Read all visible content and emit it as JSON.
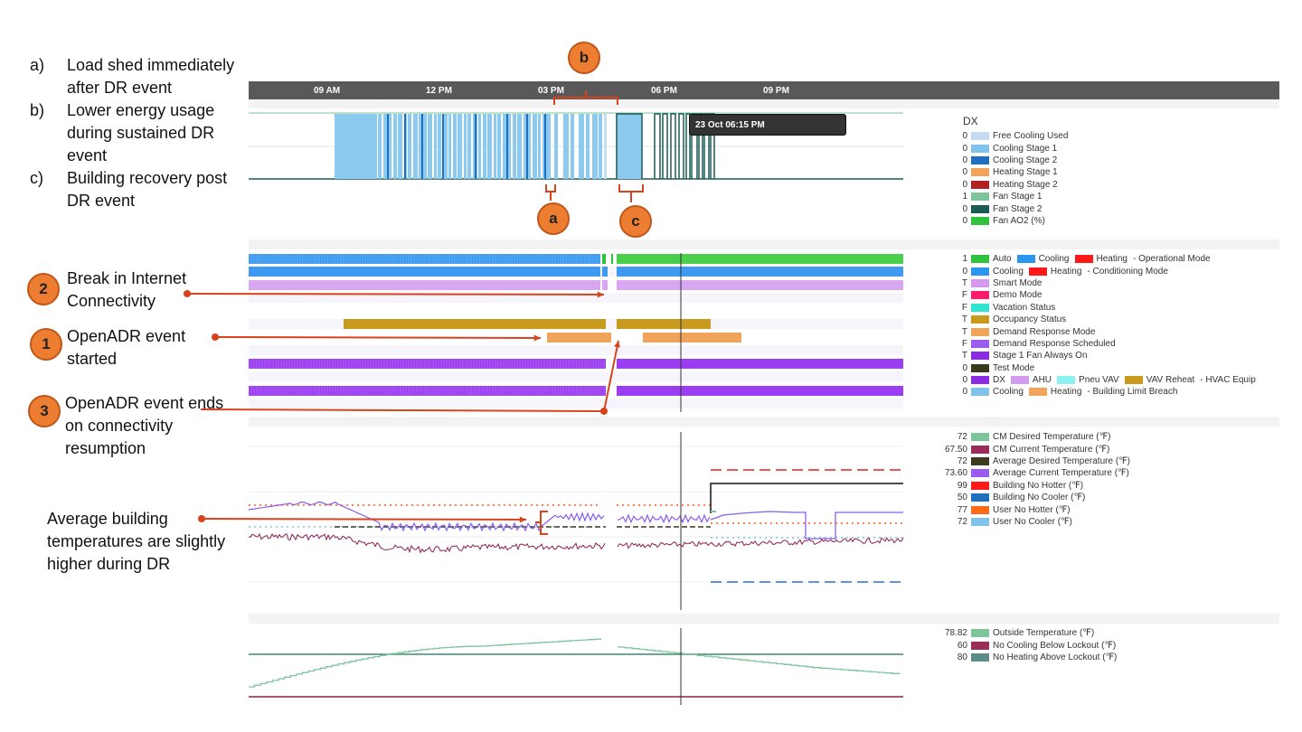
{
  "annotations": [
    {
      "key": "a)",
      "text": "Load shed immediately after DR event"
    },
    {
      "key": "b)",
      "text": "Lower energy usage during sustained DR event"
    },
    {
      "key": "c)",
      "text": "Building recovery post DR event"
    }
  ],
  "callouts": {
    "n2": {
      "num": "2",
      "text": "Break in Internet Connectivity"
    },
    "n1": {
      "num": "1",
      "text": "OpenADR event started"
    },
    "n3": {
      "num": "3",
      "text": "OpenADR event ends on connectivity resumption"
    },
    "avg": {
      "text": "Average building temperatures are slightly higher during DR"
    },
    "a": "a",
    "b": "b",
    "c": "c"
  },
  "time_axis": [
    "09 AM",
    "12 PM",
    "03 PM",
    "06 PM",
    "09 PM"
  ],
  "tooltip": "23 Oct 06:15 PM",
  "dx_legend": {
    "title": "DX",
    "items": [
      {
        "value": "0",
        "label": "Free Cooling Used",
        "color": "#c6dcf2"
      },
      {
        "value": "0",
        "label": "Cooling Stage 1",
        "color": "#7fc2ea"
      },
      {
        "value": "0",
        "label": "Cooling Stage 2",
        "color": "#1f6fc0"
      },
      {
        "value": "0",
        "label": "Heating Stage 1",
        "color": "#f1a35a"
      },
      {
        "value": "0",
        "label": "Heating Stage 2",
        "color": "#b22222"
      },
      {
        "value": "1",
        "label": "Fan Stage 1",
        "color": "#7dc49a"
      },
      {
        "value": "0",
        "label": "Fan Stage 2",
        "color": "#1c5b55"
      },
      {
        "value": "0",
        "label": "Fan AO2 (%)",
        "color": "#2fc23c"
      }
    ]
  },
  "mode_legend": [
    {
      "value": "1",
      "parts": [
        {
          "label": "Auto",
          "color": "#2fc23c"
        },
        {
          "label": "Cooling",
          "color": "#2a96f0"
        },
        {
          "label": "Heating",
          "color": "#ff1a1a"
        }
      ],
      "suffix": "- Operational Mode"
    },
    {
      "value": "0",
      "parts": [
        {
          "label": "Cooling",
          "color": "#2a96f0"
        },
        {
          "label": "Heating",
          "color": "#ff1a1a"
        }
      ],
      "suffix": "- Conditioning Mode"
    },
    {
      "value": "T",
      "parts": [
        {
          "label": "Smart Mode",
          "color": "#d39af0"
        }
      ],
      "suffix": ""
    },
    {
      "value": "F",
      "parts": [
        {
          "label": "Demo Mode",
          "color": "#ff1a6e"
        }
      ],
      "suffix": ""
    },
    {
      "value": "F",
      "parts": [
        {
          "label": "Vacation Status",
          "color": "#2de5cf"
        }
      ],
      "suffix": ""
    },
    {
      "value": "T",
      "parts": [
        {
          "label": "Occupancy Status",
          "color": "#c89a1e"
        }
      ],
      "suffix": ""
    },
    {
      "value": "T",
      "parts": [
        {
          "label": "Demand Response Mode",
          "color": "#f1a35a"
        }
      ],
      "suffix": ""
    },
    {
      "value": "F",
      "parts": [
        {
          "label": "Demand Response Scheduled",
          "color": "#9a5cf0"
        }
      ],
      "suffix": ""
    },
    {
      "value": "T",
      "parts": [
        {
          "label": "Stage 1 Fan Always On",
          "color": "#8a2be2"
        }
      ],
      "suffix": ""
    },
    {
      "value": "0",
      "parts": [
        {
          "label": "Test Mode",
          "color": "#3b3a1e"
        }
      ],
      "suffix": ""
    },
    {
      "value": "0",
      "parts": [
        {
          "label": "DX",
          "color": "#8a2be2"
        },
        {
          "label": "AHU",
          "color": "#d39af0"
        },
        {
          "label": "Pneu VAV",
          "color": "#8cf2f2"
        },
        {
          "label": "VAV Reheat",
          "color": "#c89a1e"
        }
      ],
      "suffix": "- HVAC Equip"
    },
    {
      "value": "0",
      "parts": [
        {
          "label": "Cooling",
          "color": "#7fc2ea"
        },
        {
          "label": "Heating",
          "color": "#f1a35a"
        }
      ],
      "suffix": "- Building Limit Breach"
    }
  ],
  "temp_legend": [
    {
      "value": "72",
      "label": "CM Desired Temperature (℉)",
      "color": "#7dc49a"
    },
    {
      "value": "67.50",
      "label": "CM Current Temperature (℉)",
      "color": "#9b2c5a"
    },
    {
      "value": "72",
      "label": "Average Desired Temperature (℉)",
      "color": "#3b3a1e"
    },
    {
      "value": "73.60",
      "label": "Average Current Temperature (℉)",
      "color": "#9a5cf0"
    },
    {
      "value": "99",
      "label": "Building No Hotter (℉)",
      "color": "#ff1a1a"
    },
    {
      "value": "50",
      "label": "Building No Cooler (℉)",
      "color": "#1f6fc0"
    },
    {
      "value": "77",
      "label": "User No Hotter (℉)",
      "color": "#ff6a1a"
    },
    {
      "value": "72",
      "label": "User No Cooler (℉)",
      "color": "#7fc2ea"
    }
  ],
  "outside_legend": [
    {
      "value": "78.82",
      "label": "Outside Temperature (℉)",
      "color": "#7dc49a"
    },
    {
      "value": "60",
      "label": "No Cooling Below Lockout (℉)",
      "color": "#9b2c5a"
    },
    {
      "value": "80",
      "label": "No Heating Above Lockout (℉)",
      "color": "#5c8c88"
    }
  ]
}
